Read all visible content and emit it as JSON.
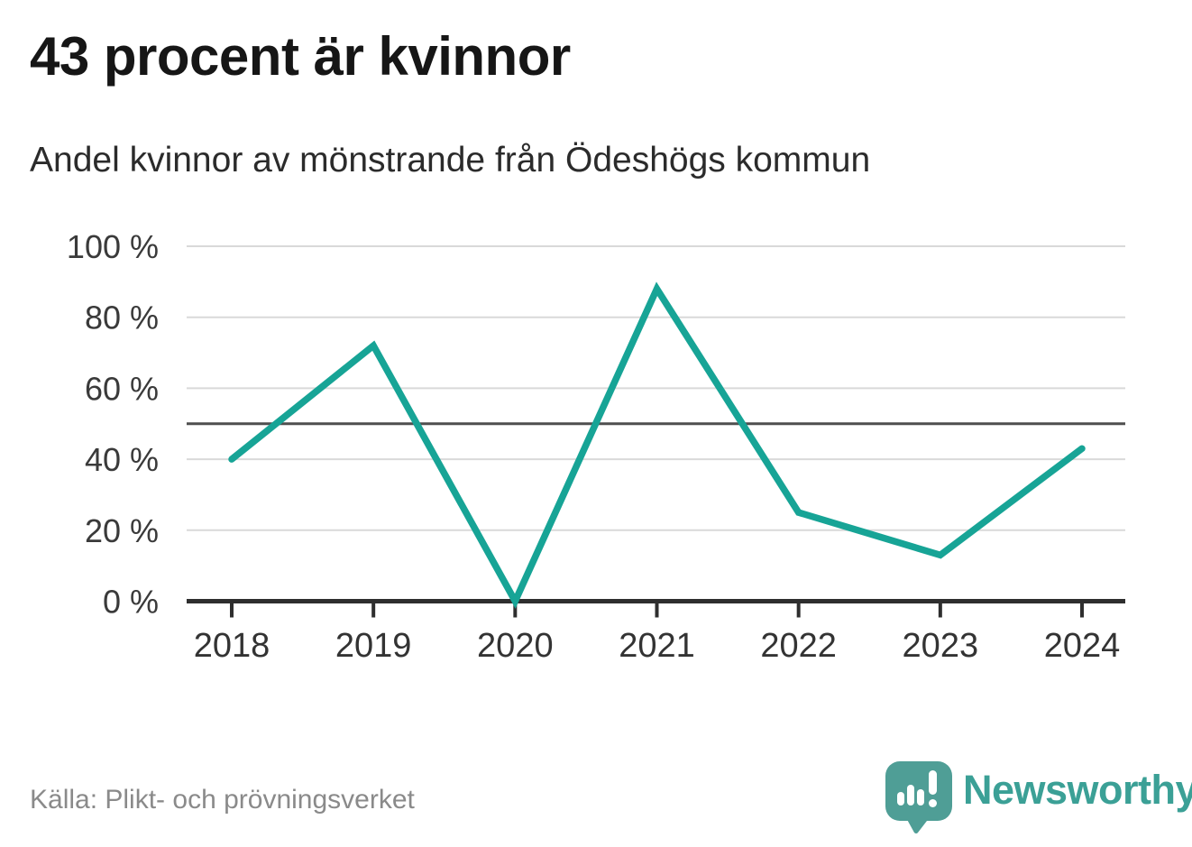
{
  "header": {
    "title": "43 procent är kvinnor",
    "subtitle": "Andel kvinnor av mönstrande från Ödeshögs kommun"
  },
  "chart_data": {
    "type": "line",
    "x": [
      "2018",
      "2019",
      "2020",
      "2021",
      "2022",
      "2023",
      "2024"
    ],
    "series": [
      {
        "name": "Andel kvinnor av mönstrande",
        "values": [
          40,
          72,
          0,
          88,
          25,
          13,
          43
        ]
      }
    ],
    "title": "43 procent är kvinnor",
    "subtitle": "Andel kvinnor av mönstrande från Ödeshögs kommun",
    "xlabel": "",
    "ylabel": "",
    "ylim": [
      0,
      100
    ],
    "yticks": [
      {
        "value": 0,
        "label": "0 %"
      },
      {
        "value": 20,
        "label": "20 %"
      },
      {
        "value": 40,
        "label": "40 %"
      },
      {
        "value": 60,
        "label": "60 %"
      },
      {
        "value": 80,
        "label": "80 %"
      },
      {
        "value": 100,
        "label": "100 %"
      }
    ],
    "reference_line": {
      "value": 50
    },
    "grid": true,
    "legend_position": "none",
    "line_color": "#17a496",
    "grid_color": "#d9d9d9",
    "axis_color": "#2e2e2e",
    "reference_line_color": "#4f4f4f",
    "tick_label_color": "#3a3a3a"
  },
  "footer": {
    "source": "Källa: Plikt- och prövningsverket",
    "logo_text": "Newsworthy"
  },
  "colors": {
    "accent": "#17a496",
    "logo_teal": "#4f9e96",
    "logo_text_teal": "#3ba096",
    "title_text": "#161616",
    "subtitle_text": "#2b2b2b",
    "source_text": "#8a8a8a"
  },
  "icons": {
    "logo_icon": "bar-chart-speech-bubble-icon"
  }
}
